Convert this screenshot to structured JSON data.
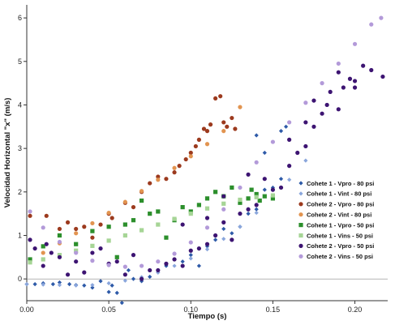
{
  "chart_data": {
    "type": "scatter",
    "xlabel": "Tiempo (s)",
    "ylabel": "Velocidad Horizontal \"x\" (m/s)",
    "xlim": [
      0,
      0.22
    ],
    "ylim": [
      -0.5,
      6.3
    ],
    "xticks": [
      {
        "value": 0.0,
        "label": "0.00"
      },
      {
        "value": 0.05,
        "label": "0.05"
      },
      {
        "value": 0.1,
        "label": "0.10"
      },
      {
        "value": 0.15,
        "label": "0.15"
      },
      {
        "value": 0.2,
        "label": "0.20"
      }
    ],
    "yticks": [
      {
        "value": 0,
        "label": "0"
      },
      {
        "value": 1,
        "label": "1"
      },
      {
        "value": 2,
        "label": "2"
      },
      {
        "value": 3,
        "label": "3"
      },
      {
        "value": 4,
        "label": "4"
      },
      {
        "value": 5,
        "label": "5"
      },
      {
        "value": 6,
        "label": "6"
      }
    ],
    "legend_position": "right",
    "grid": false,
    "series": [
      {
        "name": "Cohete 1 - Vpro - 80 psi",
        "color": "#2e5aa8",
        "marker": "diamond",
        "points": [
          [
            0.0,
            -0.12
          ],
          [
            0.005,
            -0.12
          ],
          [
            0.01,
            -0.1
          ],
          [
            0.016,
            -0.12
          ],
          [
            0.02,
            -0.08
          ],
          [
            0.026,
            -0.12
          ],
          [
            0.03,
            -0.14
          ],
          [
            0.035,
            -0.15
          ],
          [
            0.04,
            -0.2
          ],
          [
            0.045,
            -0.05
          ],
          [
            0.05,
            -0.3
          ],
          [
            0.052,
            -0.15
          ],
          [
            0.055,
            -0.32
          ],
          [
            0.058,
            -0.55
          ],
          [
            0.062,
            0.2
          ],
          [
            0.065,
            0.0
          ],
          [
            0.07,
            -0.05
          ],
          [
            0.075,
            0.05
          ],
          [
            0.08,
            0.15
          ],
          [
            0.085,
            0.3
          ],
          [
            0.09,
            0.45
          ],
          [
            0.095,
            0.4
          ],
          [
            0.1,
            0.55
          ],
          [
            0.105,
            0.3
          ],
          [
            0.11,
            0.75
          ],
          [
            0.115,
            0.9
          ],
          [
            0.12,
            1.15
          ],
          [
            0.125,
            1.05
          ],
          [
            0.13,
            1.2
          ],
          [
            0.135,
            1.5
          ],
          [
            0.14,
            1.6
          ],
          [
            0.145,
            2.05
          ],
          [
            0.15,
            2.1
          ],
          [
            0.155,
            2.3
          ],
          [
            0.155,
            3.4
          ],
          [
            0.158,
            3.5
          ],
          [
            0.14,
            3.3
          ],
          [
            0.145,
            2.9
          ]
        ]
      },
      {
        "name": "Cohete 1 - Vint - 80 psi",
        "color": "#8aa6dc",
        "marker": "diamond",
        "points": [
          [
            0.0,
            -0.12
          ],
          [
            0.01,
            -0.13
          ],
          [
            0.02,
            -0.14
          ],
          [
            0.03,
            -0.15
          ],
          [
            0.04,
            -0.14
          ],
          [
            0.05,
            -0.1
          ],
          [
            0.06,
            -0.04
          ],
          [
            0.07,
            0.04
          ],
          [
            0.08,
            0.15
          ],
          [
            0.09,
            0.3
          ],
          [
            0.1,
            0.47
          ],
          [
            0.11,
            0.68
          ],
          [
            0.12,
            0.92
          ],
          [
            0.13,
            1.2
          ],
          [
            0.14,
            1.52
          ],
          [
            0.15,
            1.88
          ],
          [
            0.16,
            2.28
          ],
          [
            0.17,
            2.72
          ]
        ]
      },
      {
        "name": "Cohete 2 - Vpro - 80 psi",
        "color": "#9c3a1e",
        "marker": "circle",
        "points": [
          [
            0.002,
            1.45
          ],
          [
            0.012,
            1.45
          ],
          [
            0.02,
            1.15
          ],
          [
            0.025,
            1.3
          ],
          [
            0.03,
            1.15
          ],
          [
            0.035,
            1.2
          ],
          [
            0.04,
            0.95
          ],
          [
            0.045,
            1.25
          ],
          [
            0.05,
            1.5
          ],
          [
            0.052,
            1.4
          ],
          [
            0.06,
            1.75
          ],
          [
            0.065,
            1.65
          ],
          [
            0.07,
            2.0
          ],
          [
            0.075,
            2.2
          ],
          [
            0.08,
            2.35
          ],
          [
            0.085,
            2.3
          ],
          [
            0.09,
            2.45
          ],
          [
            0.093,
            2.6
          ],
          [
            0.097,
            2.75
          ],
          [
            0.1,
            2.9
          ],
          [
            0.103,
            3.05
          ],
          [
            0.105,
            3.2
          ],
          [
            0.108,
            3.45
          ],
          [
            0.112,
            3.55
          ],
          [
            0.115,
            4.15
          ],
          [
            0.118,
            4.2
          ],
          [
            0.12,
            3.6
          ],
          [
            0.122,
            3.5
          ],
          [
            0.125,
            3.7
          ],
          [
            0.127,
            3.45
          ],
          [
            0.11,
            3.4
          ]
        ]
      },
      {
        "name": "Cohete 2 - Vint - 80 psi",
        "color": "#e29450",
        "marker": "circle",
        "points": [
          [
            0.002,
            0.42
          ],
          [
            0.01,
            0.6
          ],
          [
            0.02,
            0.82
          ],
          [
            0.03,
            1.05
          ],
          [
            0.04,
            1.28
          ],
          [
            0.05,
            1.52
          ],
          [
            0.06,
            1.77
          ],
          [
            0.07,
            2.02
          ],
          [
            0.08,
            2.28
          ],
          [
            0.09,
            2.55
          ],
          [
            0.1,
            2.82
          ],
          [
            0.11,
            3.1
          ],
          [
            0.12,
            3.4
          ],
          [
            0.13,
            3.95
          ]
        ]
      },
      {
        "name": "Cohete 1 - Vpro - 50 psi",
        "color": "#2c8f2c",
        "marker": "square",
        "points": [
          [
            0.002,
            0.45
          ],
          [
            0.01,
            0.75
          ],
          [
            0.02,
            1.0
          ],
          [
            0.03,
            0.8
          ],
          [
            0.04,
            1.1
          ],
          [
            0.05,
            1.2
          ],
          [
            0.055,
            0.5
          ],
          [
            0.06,
            1.25
          ],
          [
            0.065,
            1.35
          ],
          [
            0.07,
            1.8
          ],
          [
            0.075,
            1.5
          ],
          [
            0.08,
            1.55
          ],
          [
            0.085,
            0.95
          ],
          [
            0.09,
            1.35
          ],
          [
            0.095,
            1.65
          ],
          [
            0.1,
            1.55
          ],
          [
            0.105,
            1.7
          ],
          [
            0.11,
            1.85
          ],
          [
            0.115,
            2.0
          ],
          [
            0.12,
            1.9
          ],
          [
            0.125,
            2.1
          ],
          [
            0.13,
            1.75
          ],
          [
            0.135,
            1.85
          ],
          [
            0.14,
            1.95
          ],
          [
            0.145,
            1.9
          ],
          [
            0.15,
            1.85
          ],
          [
            0.142,
            1.8
          ],
          [
            0.137,
            2.05
          ]
        ]
      },
      {
        "name": "Cohete 1 - Vins - 50 psi",
        "color": "#a6d596",
        "marker": "square",
        "points": [
          [
            0.002,
            0.38
          ],
          [
            0.01,
            0.45
          ],
          [
            0.02,
            0.55
          ],
          [
            0.03,
            0.65
          ],
          [
            0.04,
            0.76
          ],
          [
            0.05,
            0.88
          ],
          [
            0.06,
            1.0
          ],
          [
            0.07,
            1.12
          ],
          [
            0.08,
            1.25
          ],
          [
            0.09,
            1.38
          ],
          [
            0.1,
            1.5
          ],
          [
            0.11,
            1.62
          ],
          [
            0.12,
            1.73
          ],
          [
            0.13,
            1.82
          ],
          [
            0.14,
            1.88
          ],
          [
            0.15,
            1.92
          ]
        ]
      },
      {
        "name": "Cohete 2 - Vpro - 50 psi",
        "color": "#3d1472",
        "marker": "circle",
        "points": [
          [
            0.002,
            0.9
          ],
          [
            0.005,
            0.7
          ],
          [
            0.01,
            0.3
          ],
          [
            0.012,
            0.8
          ],
          [
            0.015,
            0.6
          ],
          [
            0.02,
            0.5
          ],
          [
            0.025,
            0.1
          ],
          [
            0.03,
            0.4
          ],
          [
            0.035,
            0.15
          ],
          [
            0.04,
            0.6
          ],
          [
            0.045,
            0.7
          ],
          [
            0.05,
            0.35
          ],
          [
            0.055,
            0.4
          ],
          [
            0.06,
            0.1
          ],
          [
            0.065,
            0.55
          ],
          [
            0.07,
            0.0
          ],
          [
            0.075,
            0.2
          ],
          [
            0.08,
            0.2
          ],
          [
            0.085,
            0.35
          ],
          [
            0.09,
            0.45
          ],
          [
            0.095,
            0.3
          ],
          [
            0.1,
            0.65
          ],
          [
            0.105,
            0.7
          ],
          [
            0.11,
            0.8
          ],
          [
            0.115,
            1.0
          ],
          [
            0.12,
            1.3
          ],
          [
            0.125,
            0.9
          ],
          [
            0.13,
            1.5
          ],
          [
            0.135,
            1.6
          ],
          [
            0.14,
            1.7
          ],
          [
            0.145,
            2.3
          ],
          [
            0.15,
            2.05
          ],
          [
            0.155,
            2.1
          ],
          [
            0.16,
            2.6
          ],
          [
            0.165,
            2.9
          ],
          [
            0.17,
            3.05
          ],
          [
            0.175,
            3.5
          ],
          [
            0.18,
            3.8
          ],
          [
            0.183,
            4.0
          ],
          [
            0.185,
            4.3
          ],
          [
            0.19,
            3.9
          ],
          [
            0.193,
            4.4
          ],
          [
            0.197,
            4.6
          ],
          [
            0.2,
            4.4
          ],
          [
            0.205,
            4.9
          ],
          [
            0.21,
            4.8
          ],
          [
            0.217,
            4.65
          ],
          [
            0.19,
            4.75
          ],
          [
            0.2,
            4.55
          ],
          [
            0.12,
            1.9
          ],
          [
            0.11,
            1.4
          ],
          [
            0.095,
            1.25
          ],
          [
            0.135,
            2.4
          ],
          [
            0.16,
            3.2
          ],
          [
            0.17,
            3.6
          ],
          [
            0.175,
            4.1
          ]
        ]
      },
      {
        "name": "Cohete 2 - Vins - 50 psi",
        "color": "#b39ad9",
        "marker": "circle",
        "points": [
          [
            0.002,
            1.55
          ],
          [
            0.01,
            1.18
          ],
          [
            0.02,
            0.85
          ],
          [
            0.03,
            0.6
          ],
          [
            0.04,
            0.42
          ],
          [
            0.05,
            0.32
          ],
          [
            0.06,
            0.28
          ],
          [
            0.07,
            0.3
          ],
          [
            0.08,
            0.4
          ],
          [
            0.09,
            0.58
          ],
          [
            0.1,
            0.84
          ],
          [
            0.11,
            1.18
          ],
          [
            0.12,
            1.6
          ],
          [
            0.13,
            2.1
          ],
          [
            0.14,
            2.68
          ],
          [
            0.15,
            3.15
          ],
          [
            0.16,
            3.6
          ],
          [
            0.17,
            4.05
          ],
          [
            0.18,
            4.5
          ],
          [
            0.19,
            4.95
          ],
          [
            0.2,
            5.4
          ],
          [
            0.21,
            5.85
          ],
          [
            0.216,
            6.0
          ]
        ]
      }
    ]
  }
}
